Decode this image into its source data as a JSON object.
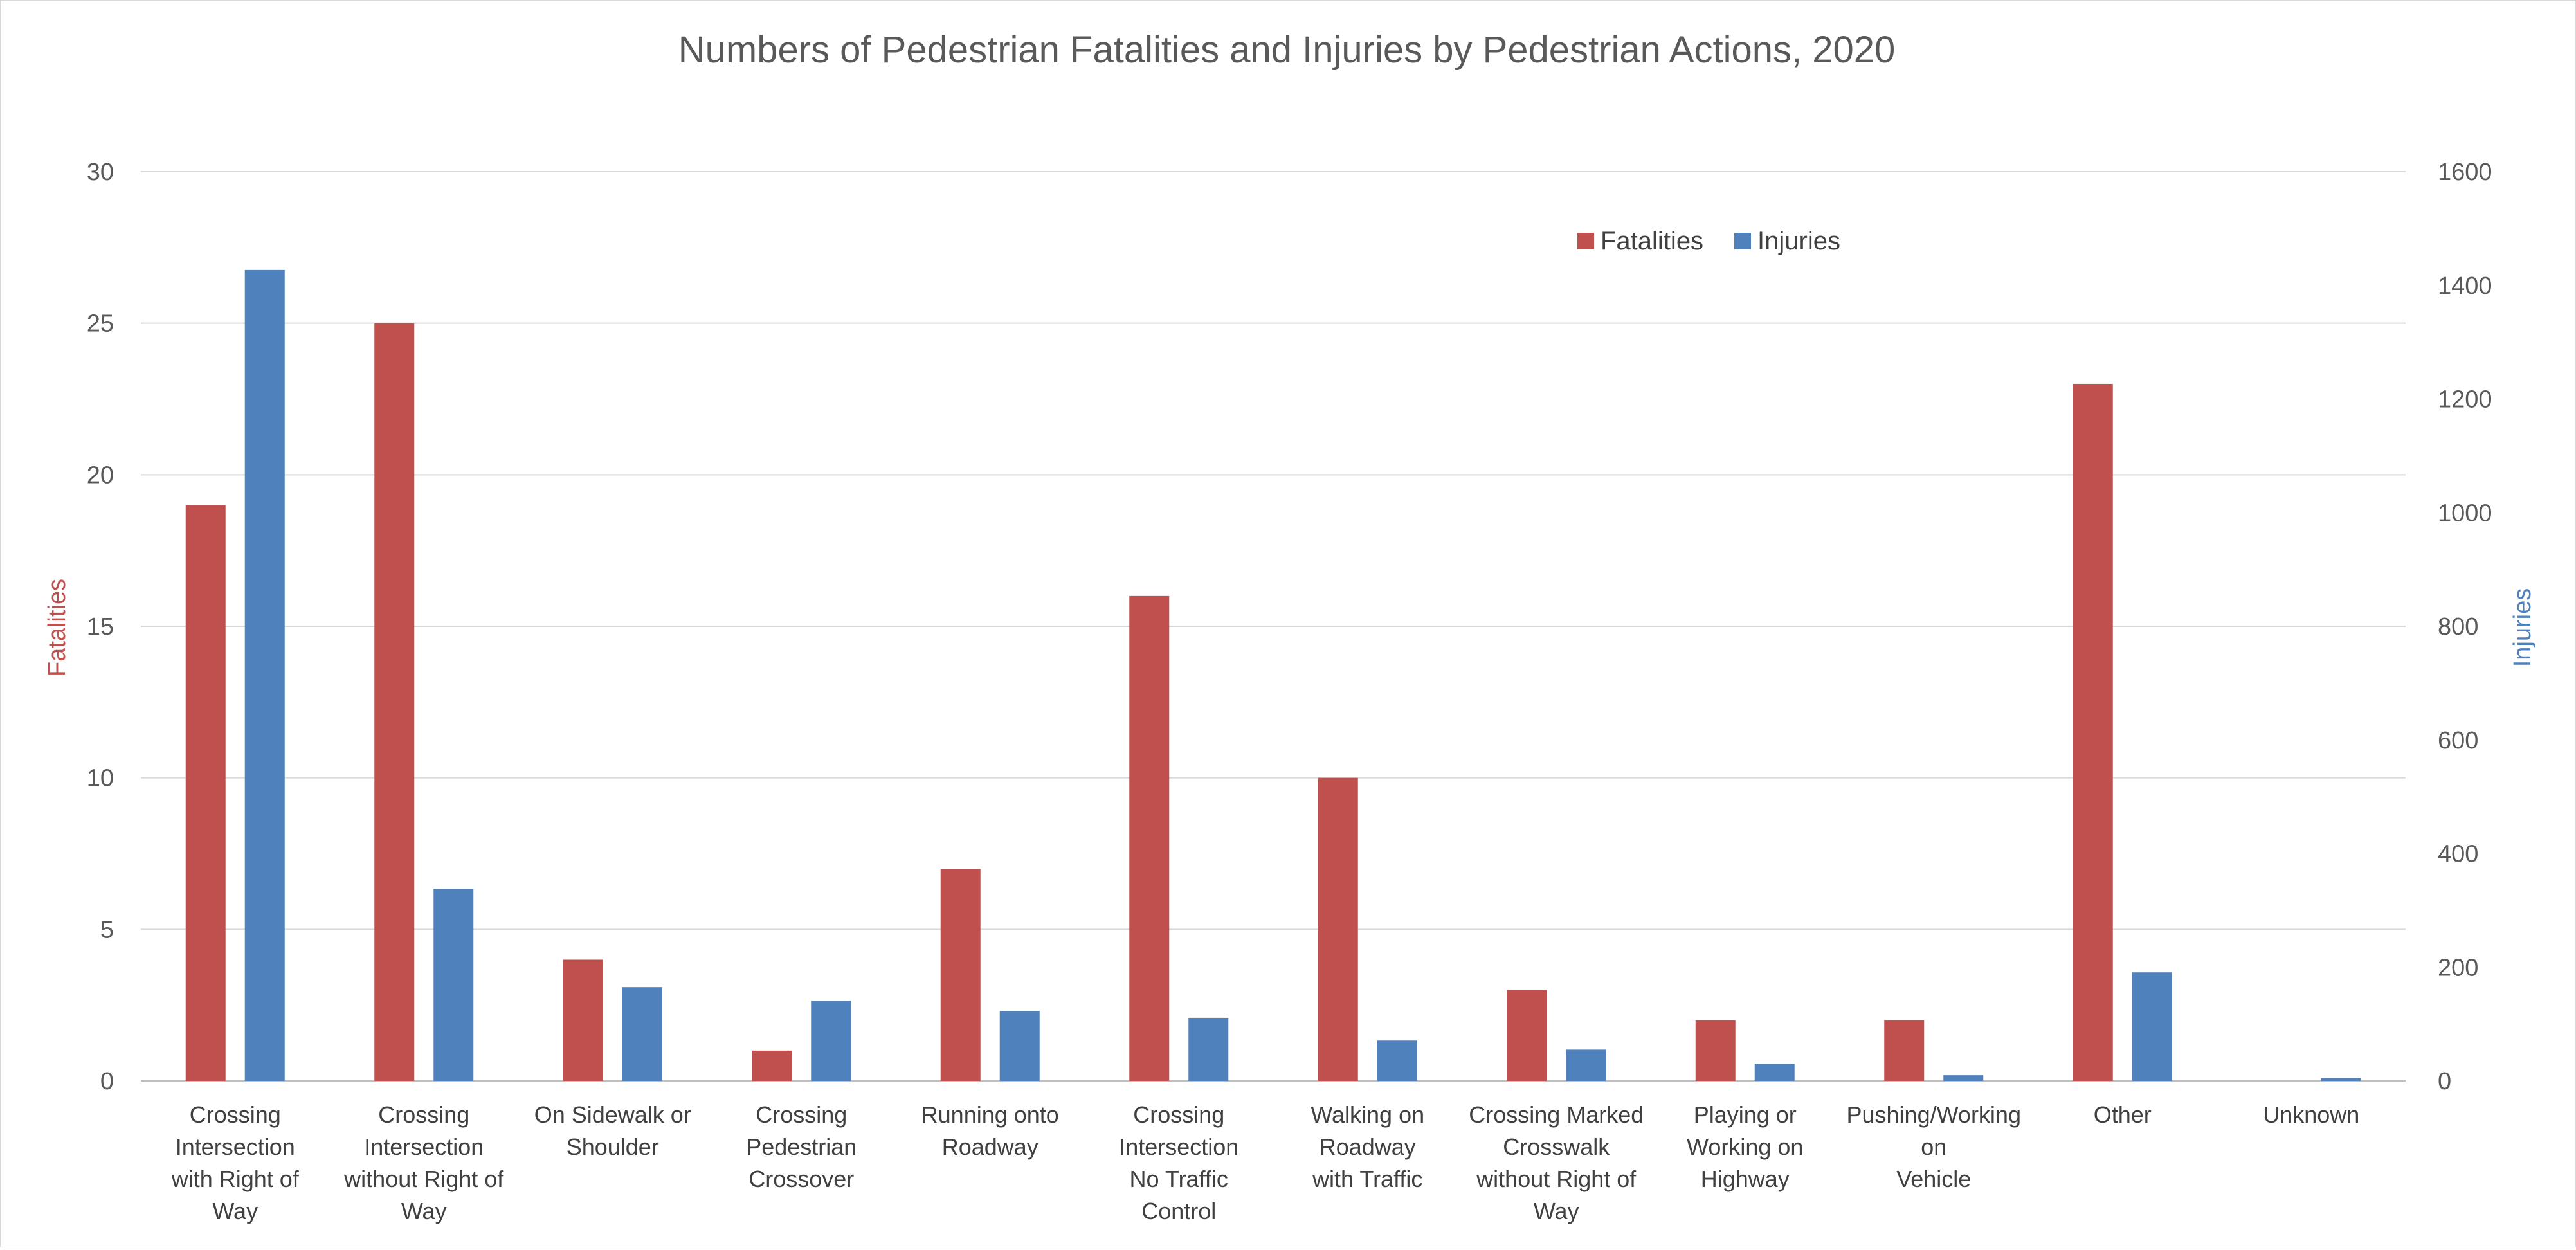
{
  "chart_data": {
    "type": "bar",
    "title": "Numbers of Pedestrian Fatalities and Injuries by Pedestrian Actions, 2020",
    "categories": [
      "Crossing Intersection with Right of Way",
      "Crossing Intersection without Right of Way",
      "On Sidewalk or Shoulder",
      "Crossing Pedestrian Crossover",
      "Running onto Roadway",
      "Crossing Intersection No Traffic Control",
      "Walking on Roadway with Traffic",
      "Crossing Marked Crosswalk without Right of Way",
      "Playing or Working on Highway",
      "Pushing/Working on Vehicle",
      "Other",
      "Unknown"
    ],
    "category_lines": [
      [
        "Crossing",
        "Intersection",
        "with Right of",
        "Way"
      ],
      [
        "Crossing",
        "Intersection",
        "without Right of",
        "Way"
      ],
      [
        "On Sidewalk or",
        "Shoulder"
      ],
      [
        "Crossing",
        "Pedestrian",
        "Crossover"
      ],
      [
        "Running onto",
        "Roadway"
      ],
      [
        "Crossing",
        "Intersection",
        "No Traffic",
        "Control"
      ],
      [
        "Walking on",
        "Roadway",
        "with Traffic"
      ],
      [
        "Crossing Marked",
        "Crosswalk",
        "without Right of",
        "Way"
      ],
      [
        "Playing or",
        "Working on",
        "Highway"
      ],
      [
        "Pushing/Working",
        "on",
        "Vehicle"
      ],
      [
        "Other"
      ],
      [
        "Unknown"
      ]
    ],
    "series": [
      {
        "name": "Fatalities",
        "axis": "left",
        "color": "#c0504d",
        "values": [
          19,
          25,
          4,
          1,
          7,
          16,
          10,
          3,
          2,
          2,
          23,
          0
        ]
      },
      {
        "name": "Injuries",
        "axis": "right",
        "color": "#4f81bd",
        "values": [
          1427,
          338,
          165,
          141,
          123,
          111,
          71,
          55,
          30,
          10,
          191,
          5
        ]
      }
    ],
    "ylabel": "Fatalities",
    "ylabel_right": "Injuries",
    "ylim": [
      0,
      30
    ],
    "ylim_right": [
      0,
      1600
    ],
    "yticks": [
      "0",
      "5",
      "10",
      "15",
      "20",
      "25",
      "30"
    ],
    "yticks_right": [
      "0",
      "200",
      "400",
      "600",
      "800",
      "1000",
      "1200",
      "1400",
      "1600"
    ],
    "grid": true,
    "legend": "top-right"
  }
}
